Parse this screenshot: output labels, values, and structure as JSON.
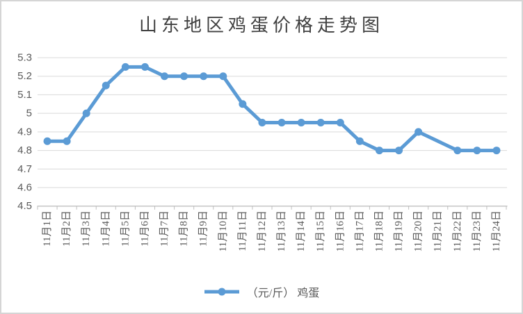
{
  "title": "山东地区鸡蛋价格走势图",
  "legend": {
    "label": "（元/斤） 鸡蛋"
  },
  "colors": {
    "series": "#5B9BD5",
    "gridline": "#D9D9D9",
    "axis": "#BFBFBF",
    "tick_label": "#595959",
    "title": "#404040",
    "background": "#FFFFFF"
  },
  "chart_data": {
    "type": "line",
    "title": "山东地区鸡蛋价格走势图",
    "categories": [
      "11月1日",
      "11月2日",
      "11月3日",
      "11月4日",
      "11月5日",
      "11月6日",
      "11月7日",
      "11月8日",
      "11月9日",
      "11月10日",
      "11月11日",
      "11月12日",
      "11月13日",
      "11月14日",
      "11月15日",
      "11月16日",
      "11月17日",
      "11月18日",
      "11月19日",
      "11月20日",
      "11月21日",
      "11月22日",
      "11月23日",
      "11月24日"
    ],
    "series": [
      {
        "name": "（元/斤） 鸡蛋",
        "values": [
          4.85,
          4.85,
          5.0,
          5.15,
          5.25,
          5.25,
          5.2,
          5.2,
          5.2,
          5.2,
          5.05,
          4.95,
          4.95,
          4.95,
          4.95,
          4.95,
          4.85,
          4.8,
          4.8,
          4.9,
          null,
          4.8,
          4.8,
          4.8
        ]
      }
    ],
    "missing_points": [
      "11月21日"
    ],
    "xlabel": "",
    "ylabel": "",
    "ylim": [
      4.5,
      5.3
    ],
    "ytick_step": 0.1,
    "ytick_labels": [
      "4.5",
      "4.6",
      "4.7",
      "4.8",
      "4.9",
      "5",
      "5.1",
      "5.2",
      "5.3"
    ],
    "grid": true,
    "marker": "circle",
    "legend_position": "bottom",
    "x_tick_label_rotation": 90
  }
}
